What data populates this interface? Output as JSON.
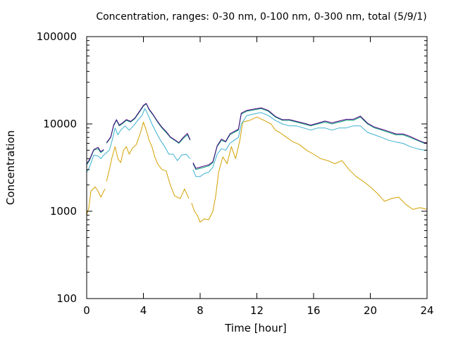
{
  "chart_data": {
    "type": "line",
    "title": "Concentration, ranges: 0-30 nm, 0-100 nm, 0-300 nm, total (5/9/1)",
    "xlabel": "Time [hour]",
    "ylabel": "Concentration",
    "xlim": [
      0,
      24
    ],
    "ylim": [
      100,
      100000
    ],
    "yscale": "log",
    "xticks": [
      0,
      4,
      8,
      12,
      16,
      20,
      24
    ],
    "xtick_labels": [
      "0",
      "4",
      "8",
      "12",
      "16",
      "20",
      "24"
    ],
    "yticks": [
      100,
      1000,
      10000,
      100000
    ],
    "ytick_labels": [
      "100",
      "1000",
      "10000",
      "100000"
    ],
    "grid": false,
    "legend": "none",
    "colors": [
      "#d4a000",
      "#3cb0d0",
      "#009e73",
      "#4b0082"
    ],
    "series": [
      {
        "color": "#d4a000",
        "points": [
          [
            0,
            900
          ],
          [
            0.15,
            1100
          ],
          [
            0.3,
            1700
          ],
          [
            0.6,
            1900
          ],
          [
            0.8,
            1700
          ],
          [
            1.0,
            1450
          ],
          [
            1.2,
            1700
          ],
          [
            1.3,
            1800
          ],
          null,
          [
            1.4,
            2200
          ],
          [
            1.6,
            3000
          ],
          [
            1.8,
            4200
          ],
          [
            2.0,
            5500
          ],
          [
            2.2,
            4000
          ],
          [
            2.4,
            3600
          ],
          [
            2.6,
            5000
          ],
          [
            2.8,
            5500
          ],
          [
            3.0,
            4500
          ],
          [
            3.2,
            5200
          ],
          [
            3.5,
            5800
          ],
          [
            3.8,
            8000
          ],
          [
            4.0,
            10500
          ],
          [
            4.2,
            8500
          ],
          [
            4.4,
            6500
          ],
          [
            4.6,
            5500
          ],
          [
            4.8,
            4200
          ],
          [
            5.0,
            3500
          ],
          [
            5.3,
            3000
          ],
          [
            5.6,
            2900
          ],
          [
            5.9,
            2000
          ],
          [
            6.2,
            1500
          ],
          [
            6.6,
            1400
          ],
          [
            6.9,
            1800
          ],
          [
            7.2,
            1400
          ],
          null,
          [
            7.4,
            1250
          ],
          [
            7.6,
            1000
          ],
          [
            7.8,
            900
          ],
          [
            8.0,
            750
          ],
          [
            8.3,
            820
          ],
          [
            8.6,
            800
          ],
          [
            8.9,
            1000
          ],
          [
            9.1,
            1500
          ],
          [
            9.3,
            2800
          ],
          [
            9.6,
            4200
          ],
          [
            9.9,
            3500
          ],
          [
            10.2,
            5500
          ],
          [
            10.5,
            4000
          ],
          [
            10.8,
            6500
          ],
          [
            11.0,
            10500
          ],
          [
            11.5,
            11000
          ],
          [
            12.0,
            12000
          ],
          [
            12.5,
            11000
          ],
          [
            13.0,
            10000
          ],
          [
            13.3,
            8500
          ],
          [
            13.6,
            8000
          ],
          [
            14.0,
            7200
          ],
          [
            14.5,
            6300
          ],
          [
            15.0,
            5800
          ],
          [
            15.5,
            5000
          ],
          [
            16.0,
            4500
          ],
          [
            16.5,
            4000
          ],
          [
            17.0,
            3800
          ],
          [
            17.5,
            3500
          ],
          [
            18.0,
            3800
          ],
          [
            18.5,
            3000
          ],
          [
            19.0,
            2500
          ],
          [
            19.5,
            2200
          ],
          [
            20.0,
            1900
          ],
          [
            20.5,
            1600
          ],
          [
            21.0,
            1300
          ],
          [
            21.5,
            1400
          ],
          [
            22.0,
            1450
          ],
          [
            22.5,
            1200
          ],
          [
            23.0,
            1050
          ],
          [
            23.5,
            1100
          ],
          [
            24.0,
            1050
          ]
        ]
      },
      {
        "color": "#3cb0d0",
        "points": [
          [
            0,
            2800
          ],
          [
            0.2,
            3200
          ],
          [
            0.5,
            4400
          ],
          [
            0.8,
            4300
          ],
          [
            1.0,
            4000
          ],
          [
            1.2,
            4400
          ],
          [
            1.4,
            4700
          ],
          [
            1.6,
            5000
          ],
          [
            1.8,
            6500
          ],
          [
            2.0,
            9000
          ],
          [
            2.2,
            7500
          ],
          [
            2.4,
            8500
          ],
          [
            2.7,
            9500
          ],
          [
            3.0,
            8500
          ],
          [
            3.3,
            9500
          ],
          [
            3.6,
            11000
          ],
          [
            3.9,
            12500
          ],
          [
            4.1,
            15000
          ],
          [
            4.3,
            13000
          ],
          [
            4.6,
            10000
          ],
          [
            4.9,
            8000
          ],
          [
            5.2,
            6500
          ],
          [
            5.5,
            5500
          ],
          [
            5.8,
            4500
          ],
          [
            6.1,
            4500
          ],
          [
            6.4,
            3800
          ],
          [
            6.7,
            4400
          ],
          [
            7.0,
            4500
          ],
          [
            7.3,
            4000
          ],
          null,
          [
            7.5,
            3000
          ],
          [
            7.7,
            2500
          ],
          [
            8.0,
            2500
          ],
          [
            8.3,
            2700
          ],
          [
            8.6,
            2800
          ],
          [
            8.9,
            3200
          ],
          [
            9.2,
            4500
          ],
          [
            9.5,
            5200
          ],
          [
            9.8,
            5000
          ],
          [
            10.1,
            6000
          ],
          [
            10.4,
            6500
          ],
          [
            10.7,
            7000
          ],
          [
            10.9,
            10000
          ],
          [
            11.3,
            12500
          ],
          [
            11.8,
            13000
          ],
          [
            12.3,
            13500
          ],
          [
            12.8,
            12500
          ],
          [
            13.3,
            11000
          ],
          [
            13.8,
            10000
          ],
          [
            14.3,
            9500
          ],
          [
            14.8,
            9500
          ],
          [
            15.3,
            9000
          ],
          [
            15.8,
            8500
          ],
          [
            16.3,
            9000
          ],
          [
            16.8,
            9000
          ],
          [
            17.3,
            8500
          ],
          [
            17.8,
            9000
          ],
          [
            18.3,
            9000
          ],
          [
            18.8,
            9500
          ],
          [
            19.3,
            9500
          ],
          [
            19.8,
            8000
          ],
          [
            20.3,
            7500
          ],
          [
            20.8,
            7000
          ],
          [
            21.3,
            6500
          ],
          [
            21.8,
            6200
          ],
          [
            22.3,
            6000
          ],
          [
            22.8,
            5500
          ],
          [
            23.3,
            5200
          ],
          [
            23.8,
            5000
          ],
          [
            24.0,
            5000
          ]
        ]
      },
      {
        "color": "#009e73",
        "points": [
          [
            0,
            3400
          ],
          [
            0.2,
            3800
          ],
          [
            0.5,
            5000
          ],
          [
            0.8,
            5200
          ],
          [
            1.0,
            4700
          ],
          [
            1.2,
            5000
          ],
          null,
          [
            1.4,
            6000
          ],
          [
            1.7,
            7000
          ],
          [
            1.9,
            9500
          ],
          [
            2.1,
            11000
          ],
          [
            2.3,
            9500
          ],
          [
            2.5,
            10000
          ],
          [
            2.8,
            11000
          ],
          [
            3.1,
            10500
          ],
          [
            3.4,
            11500
          ],
          [
            3.7,
            13500
          ],
          [
            4.0,
            16000
          ],
          [
            4.2,
            17000
          ],
          [
            4.4,
            14500
          ],
          [
            4.7,
            12500
          ],
          [
            5.0,
            10500
          ],
          [
            5.3,
            9000
          ],
          [
            5.6,
            8000
          ],
          [
            5.9,
            7000
          ],
          [
            6.2,
            6500
          ],
          [
            6.5,
            6000
          ],
          [
            6.8,
            6800
          ],
          [
            7.1,
            7500
          ],
          [
            7.3,
            6500
          ],
          null,
          [
            7.5,
            3500
          ],
          [
            7.7,
            3000
          ],
          [
            8.0,
            3100
          ],
          [
            8.3,
            3200
          ],
          [
            8.6,
            3300
          ],
          [
            8.9,
            3600
          ],
          [
            9.2,
            5500
          ],
          [
            9.5,
            6500
          ],
          [
            9.8,
            6200
          ],
          [
            10.1,
            7500
          ],
          [
            10.4,
            8000
          ],
          [
            10.7,
            8500
          ],
          [
            10.9,
            13000
          ],
          [
            11.3,
            14000
          ],
          [
            11.8,
            14500
          ],
          [
            12.3,
            15000
          ],
          [
            12.8,
            14000
          ],
          [
            13.3,
            12000
          ],
          [
            13.8,
            11000
          ],
          [
            14.3,
            11000
          ],
          [
            14.8,
            10500
          ],
          [
            15.3,
            10000
          ],
          [
            15.8,
            9500
          ],
          [
            16.3,
            10000
          ],
          [
            16.8,
            10500
          ],
          [
            17.3,
            10000
          ],
          [
            17.8,
            10500
          ],
          [
            18.3,
            11000
          ],
          [
            18.8,
            11000
          ],
          [
            19.3,
            12000
          ],
          [
            19.8,
            10000
          ],
          [
            20.3,
            9000
          ],
          [
            20.8,
            8500
          ],
          [
            21.3,
            8000
          ],
          [
            21.8,
            7500
          ],
          [
            22.3,
            7500
          ],
          [
            22.8,
            7000
          ],
          [
            23.3,
            6500
          ],
          [
            23.8,
            6000
          ],
          [
            24.0,
            6000
          ]
        ]
      },
      {
        "color": "#4b0082",
        "points": [
          [
            0,
            3500
          ],
          [
            0.2,
            3900
          ],
          [
            0.5,
            5100
          ],
          [
            0.8,
            5400
          ],
          [
            1.0,
            4800
          ],
          [
            1.2,
            5100
          ],
          null,
          [
            1.4,
            6100
          ],
          [
            1.7,
            7100
          ],
          [
            1.9,
            9700
          ],
          [
            2.1,
            11200
          ],
          [
            2.3,
            9700
          ],
          [
            2.5,
            10200
          ],
          [
            2.8,
            11200
          ],
          [
            3.1,
            10700
          ],
          [
            3.4,
            11700
          ],
          [
            3.7,
            13800
          ],
          [
            4.0,
            16300
          ],
          [
            4.2,
            17200
          ],
          [
            4.4,
            14800
          ],
          [
            4.7,
            12700
          ],
          [
            5.0,
            10700
          ],
          [
            5.3,
            9200
          ],
          [
            5.6,
            8200
          ],
          [
            5.9,
            7100
          ],
          [
            6.2,
            6600
          ],
          [
            6.5,
            6100
          ],
          [
            6.8,
            7000
          ],
          [
            7.1,
            7800
          ],
          [
            7.3,
            6600
          ],
          null,
          [
            7.5,
            3600
          ],
          [
            7.7,
            3100
          ],
          [
            8.0,
            3200
          ],
          [
            8.3,
            3300
          ],
          [
            8.6,
            3400
          ],
          [
            8.9,
            3700
          ],
          [
            9.2,
            5600
          ],
          [
            9.5,
            6700
          ],
          [
            9.8,
            6300
          ],
          [
            10.1,
            7700
          ],
          [
            10.4,
            8200
          ],
          [
            10.7,
            8700
          ],
          [
            10.9,
            13300
          ],
          [
            11.3,
            14300
          ],
          [
            11.8,
            14800
          ],
          [
            12.3,
            15300
          ],
          [
            12.8,
            14300
          ],
          [
            13.3,
            12200
          ],
          [
            13.8,
            11200
          ],
          [
            14.3,
            11200
          ],
          [
            14.8,
            10700
          ],
          [
            15.3,
            10200
          ],
          [
            15.8,
            9700
          ],
          [
            16.3,
            10200
          ],
          [
            16.8,
            10800
          ],
          [
            17.3,
            10300
          ],
          [
            17.8,
            10800
          ],
          [
            18.3,
            11300
          ],
          [
            18.8,
            11300
          ],
          [
            19.3,
            12300
          ],
          [
            19.8,
            10200
          ],
          [
            20.3,
            9200
          ],
          [
            20.8,
            8700
          ],
          [
            21.3,
            8200
          ],
          [
            21.8,
            7700
          ],
          [
            22.3,
            7700
          ],
          [
            22.8,
            7200
          ],
          [
            23.3,
            6600
          ],
          [
            23.8,
            6100
          ],
          [
            24.0,
            6100
          ]
        ]
      }
    ]
  }
}
